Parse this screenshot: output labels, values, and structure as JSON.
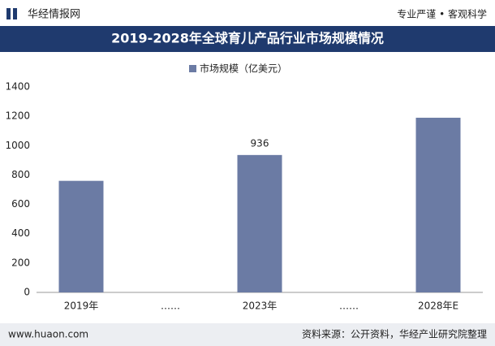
{
  "header": {
    "brand": "华经情报网",
    "slogan": "专业严谨 • 客观科学"
  },
  "chart_data": {
    "type": "bar",
    "title": "2019-2028年全球育儿产品行业市场规模情况",
    "categories": [
      "2019年",
      "……",
      "2023年",
      "……",
      "2028年E"
    ],
    "series": [
      {
        "name": "市场规模（亿美元）",
        "color": "#6b7ba4",
        "values": [
          760,
          null,
          936,
          null,
          1190
        ]
      }
    ],
    "data_labels": [
      null,
      null,
      "936",
      null,
      null
    ],
    "ylim": [
      0,
      1400
    ],
    "yticks": [
      0,
      200,
      400,
      600,
      800,
      1000,
      1200,
      1400
    ],
    "grid": false
  },
  "footer": {
    "website": "www.huaon.com",
    "source": "资料来源：公开资料，华经产业研究院整理"
  }
}
